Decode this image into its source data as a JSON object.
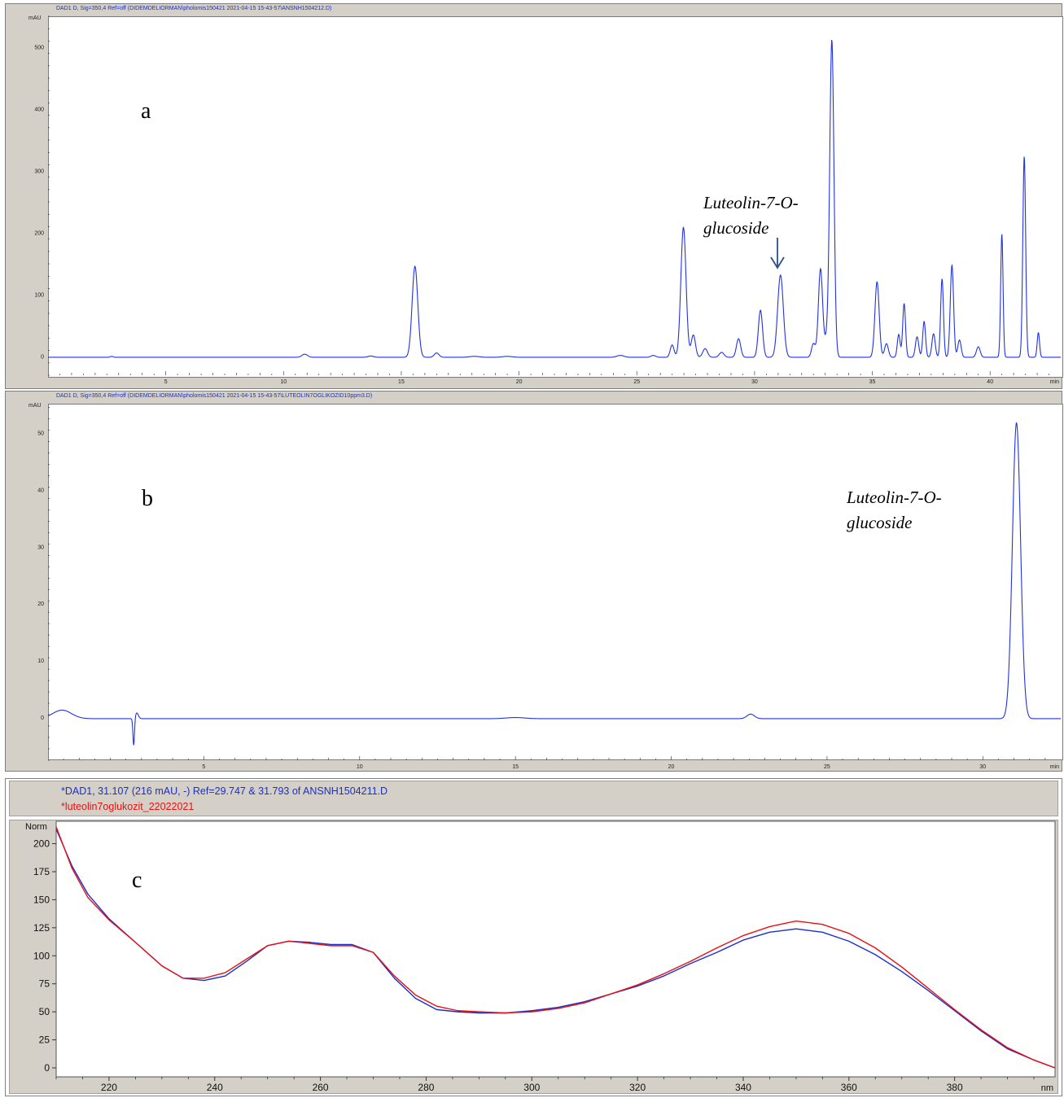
{
  "panels": [
    {
      "id": "a",
      "header": "DAD1 D, Sig=350,4 Ref=off (DIDEMDELIORMAN\\pholomis150421 2021-04-15 15-43-57\\ANSNH1504212.D)",
      "panel_letter": "a",
      "y_unit": "mAU",
      "x_unit": "min",
      "annotation": [
        "Luteolin-7-O-",
        "glucoside"
      ]
    },
    {
      "id": "b",
      "header": "DAD1 D, Sig=350,4 Ref=off (DIDEMDELIORMAN\\pholomis150421 2021-04-15 15-43-57\\LUTEOLIN7OGLIKOZID10ppm3.D)",
      "panel_letter": "b",
      "y_unit": "mAU",
      "x_unit": "min",
      "annotation": [
        "Luteolin-7-O-",
        "glucoside"
      ]
    },
    {
      "id": "c",
      "panel_letter": "c",
      "legend": [
        {
          "text": "*DAD1, 31.107 (216 mAU, -) Ref=29.747 & 31.793 of ANSNH1504211.D",
          "color": "#1a2fd0"
        },
        {
          "text": "*luteolin7oglukozit_22022021",
          "color": "#e81010"
        }
      ],
      "y_unit": "Norm",
      "x_unit": "nm"
    }
  ],
  "chart_data": [
    {
      "type": "line",
      "panel": "a",
      "xlim": [
        0,
        43
      ],
      "ylim": [
        -30,
        550
      ],
      "xticks": [
        5,
        10,
        15,
        20,
        25,
        30,
        35,
        40
      ],
      "yticks": [
        0,
        100,
        200,
        300,
        400,
        500
      ],
      "xlabel": "min",
      "ylabel": "mAU",
      "baseline": -1,
      "peaks": [
        [
          2.7,
          1.5,
          0.06
        ],
        [
          10.9,
          5,
          0.12
        ],
        [
          13.7,
          2,
          0.12
        ],
        [
          15.58,
          147,
          0.12
        ],
        [
          16.5,
          7,
          0.1
        ],
        [
          18.1,
          1.5,
          0.2
        ],
        [
          19.5,
          1.5,
          0.2
        ],
        [
          24.3,
          3,
          0.15
        ],
        [
          25.7,
          3,
          0.1
        ],
        [
          26.5,
          20,
          0.08
        ],
        [
          26.98,
          210,
          0.11
        ],
        [
          27.4,
          36,
          0.09
        ],
        [
          27.9,
          14,
          0.1
        ],
        [
          28.6,
          8,
          0.1
        ],
        [
          29.32,
          30,
          0.09
        ],
        [
          30.25,
          76,
          0.09
        ],
        [
          31.1,
          133,
          0.12
        ],
        [
          32.5,
          22,
          0.08
        ],
        [
          32.8,
          143,
          0.09
        ],
        [
          33.28,
          513,
          0.09
        ],
        [
          33.05,
          25,
          0.08
        ],
        [
          35.2,
          122,
          0.09
        ],
        [
          35.6,
          22,
          0.08
        ],
        [
          36.12,
          37,
          0.06
        ],
        [
          36.35,
          87,
          0.06
        ],
        [
          36.9,
          33,
          0.07
        ],
        [
          37.2,
          58,
          0.06
        ],
        [
          37.6,
          38,
          0.07
        ],
        [
          37.96,
          127,
          0.06
        ],
        [
          38.38,
          149,
          0.07
        ],
        [
          38.7,
          28,
          0.07
        ],
        [
          39.5,
          17,
          0.08
        ],
        [
          40.5,
          199,
          0.05
        ],
        [
          41.45,
          325,
          0.06
        ],
        [
          42.05,
          40,
          0.05
        ]
      ],
      "annotated_peak": {
        "label": "Luteolin-7-O-glucoside",
        "x": 31.1,
        "y": 133
      }
    },
    {
      "type": "line",
      "panel": "b",
      "xlim": [
        0,
        32.5
      ],
      "ylim": [
        -7.5,
        55
      ],
      "xticks": [
        5,
        10,
        15,
        20,
        25,
        30
      ],
      "yticks": [
        0,
        10,
        20,
        30,
        40,
        50
      ],
      "xlabel": "min",
      "ylabel": "mAU",
      "baseline": -0.2,
      "peaks": [
        [
          0.45,
          1.5,
          0.3
        ],
        [
          2.75,
          -4.8,
          0.025
        ],
        [
          2.85,
          1.0,
          0.05
        ],
        [
          15.0,
          0.2,
          0.3
        ],
        [
          22.55,
          0.8,
          0.12
        ],
        [
          31.08,
          52,
          0.13
        ]
      ],
      "annotated_peak": {
        "label": "Luteolin-7-O-glucoside",
        "x": 31.08,
        "y": 52
      }
    },
    {
      "type": "line",
      "panel": "c",
      "xlim": [
        210,
        399
      ],
      "ylim": [
        -8,
        220
      ],
      "xticks": [
        220,
        240,
        260,
        280,
        300,
        320,
        340,
        360,
        380
      ],
      "yticks": [
        0,
        25,
        50,
        75,
        100,
        125,
        150,
        175,
        200
      ],
      "xlabel": "nm",
      "ylabel": "Norm",
      "series": [
        {
          "name": "*DAD1, 31.107 (216 mAU, -) Ref=29.747 & 31.793 of ANSNH1504211.D",
          "color": "#1a2fd0",
          "x": [
            210,
            213,
            216,
            220,
            225,
            230,
            234,
            238,
            242,
            246,
            250,
            254,
            258,
            262,
            266,
            270,
            274,
            278,
            282,
            286,
            290,
            295,
            300,
            305,
            310,
            315,
            320,
            325,
            330,
            335,
            340,
            345,
            350,
            355,
            360,
            365,
            370,
            375,
            380,
            385,
            390,
            395,
            399
          ],
          "y": [
            213,
            180,
            155,
            133,
            112,
            91,
            80,
            78,
            82,
            95,
            109,
            113,
            112,
            110,
            110,
            103,
            80,
            62,
            52,
            50,
            49,
            49,
            51,
            54,
            59,
            66,
            73,
            82,
            93,
            103,
            114,
            121,
            124,
            121,
            113,
            101,
            86,
            69,
            51,
            33,
            17,
            7,
            0
          ]
        },
        {
          "name": "*luteolin7oglukozit_22022021",
          "color": "#e81010",
          "x": [
            210,
            213,
            216,
            220,
            225,
            230,
            234,
            238,
            242,
            246,
            250,
            254,
            258,
            262,
            266,
            270,
            274,
            278,
            282,
            286,
            290,
            295,
            300,
            305,
            310,
            315,
            320,
            325,
            330,
            335,
            340,
            345,
            350,
            355,
            360,
            365,
            370,
            375,
            380,
            385,
            390,
            395,
            399
          ],
          "y": [
            215,
            178,
            152,
            132,
            112,
            91,
            80,
            80,
            85,
            97,
            109,
            113,
            111,
            109,
            109,
            103,
            82,
            65,
            55,
            51,
            50,
            49,
            50,
            53,
            58,
            66,
            74,
            84,
            95,
            107,
            118,
            126,
            131,
            128,
            120,
            107,
            90,
            71,
            52,
            34,
            18,
            7,
            0
          ]
        }
      ]
    }
  ]
}
